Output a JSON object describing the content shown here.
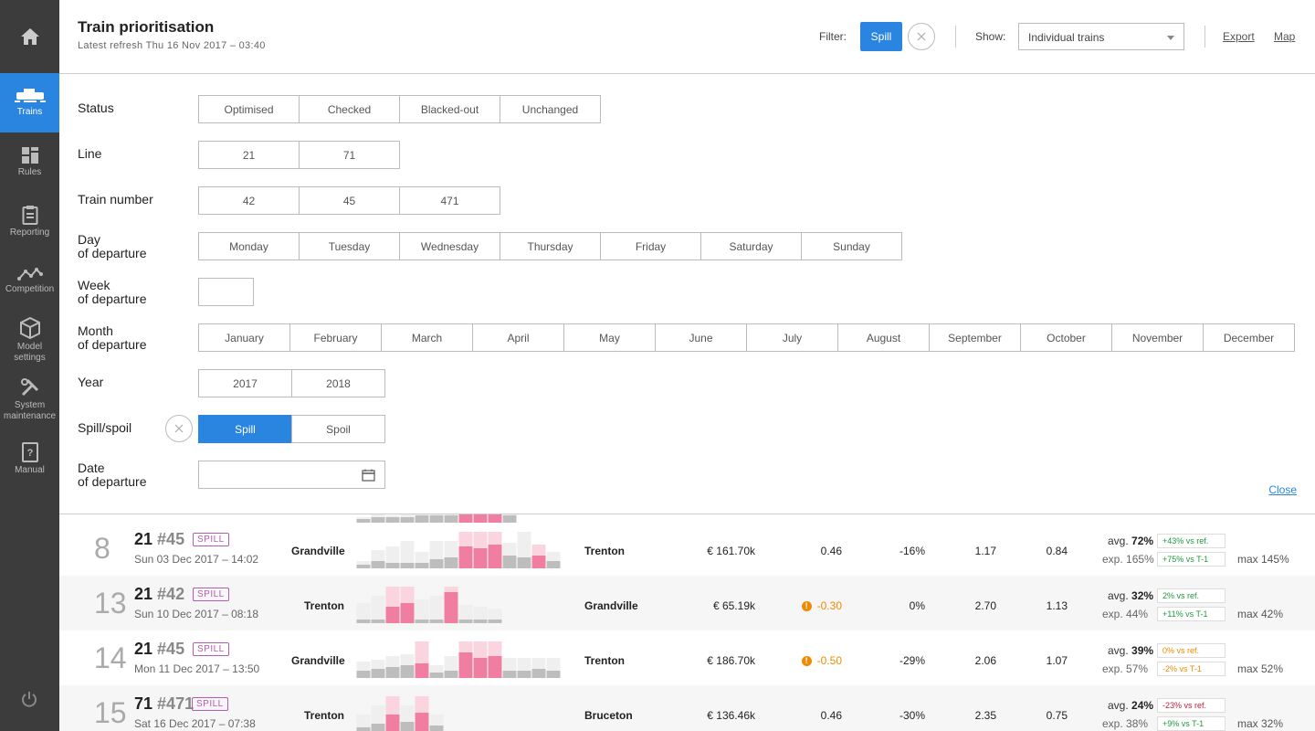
{
  "sidebar": {
    "items": [
      {
        "label": "Trains",
        "icon": "train-icon",
        "active": true
      },
      {
        "label": "Rules",
        "icon": "rules-icon"
      },
      {
        "label": "Reporting",
        "icon": "clipboard-icon"
      },
      {
        "label": "Competition",
        "icon": "line-graph-icon"
      },
      {
        "label": "Model\nsettings",
        "icon": "cube-icon"
      },
      {
        "label": "System\nmaintenance",
        "icon": "tools-icon"
      },
      {
        "label": "Manual",
        "icon": "book-icon"
      }
    ]
  },
  "header": {
    "title": "Train prioritisation",
    "subtitle": "Latest refresh Thu 16 Nov 2017 – 03:40",
    "filter_label": "Filter:",
    "filter_chip": "Spill",
    "show_label": "Show:",
    "show_value": "Individual trains",
    "export_label": "Export",
    "map_label": "Map"
  },
  "filters": {
    "status": {
      "label": "Status",
      "options": [
        "Optimised",
        "Checked",
        "Blacked-out",
        "Unchanged"
      ]
    },
    "line": {
      "label": "Line",
      "options": [
        "21",
        "71"
      ]
    },
    "train_number": {
      "label": "Train number",
      "options": [
        "42",
        "45",
        "471"
      ]
    },
    "day": {
      "label1": "Day",
      "label2": "of departure",
      "options": [
        "Monday",
        "Tuesday",
        "Wednesday",
        "Thursday",
        "Friday",
        "Saturday",
        "Sunday"
      ]
    },
    "week": {
      "label1": "Week",
      "label2": "of departure"
    },
    "month": {
      "label1": "Month",
      "label2": "of departure",
      "options": [
        "January",
        "February",
        "March",
        "April",
        "May",
        "June",
        "July",
        "August",
        "September",
        "October",
        "November",
        "December"
      ]
    },
    "year": {
      "label": "Year",
      "options": [
        "2017",
        "2018"
      ]
    },
    "spill": {
      "label": "Spill/spoil",
      "options": [
        "Spill",
        "Spoil"
      ],
      "selected": "Spill"
    },
    "date": {
      "label1": "Date",
      "label2": "of departure"
    },
    "close_label": "Close"
  },
  "rows": [
    {
      "rank": "8",
      "line": "21",
      "train": "#45",
      "badge": "SPILL",
      "date": "Sun 03 Dec 2017 – 14:02",
      "from": "Grandville",
      "to": "Trenton",
      "revenue": "€ 161.70k",
      "score": "0.46",
      "score_warn": false,
      "pct": "-16%",
      "v1": "1.17",
      "v2": "0.84",
      "avg_label": "avg.",
      "avg": "72%",
      "avg_pill": "+43% vs ref.",
      "avg_pill_color": "green",
      "exp": "exp. 165%",
      "exp_pill": "+75% vs T-1",
      "exp_pill_color": "green",
      "max": "max 145%"
    },
    {
      "rank": "13",
      "line": "21",
      "train": "#42",
      "badge": "SPILL",
      "date": "Sun 10 Dec 2017 – 08:18",
      "from": "Trenton",
      "to": "Grandville",
      "revenue": "€ 65.19k",
      "score": "-0.30",
      "score_warn": true,
      "pct": "0%",
      "v1": "2.70",
      "v2": "1.13",
      "avg_label": "avg.",
      "avg": "32%",
      "avg_pill": "2% vs ref.",
      "avg_pill_color": "green",
      "exp": "exp. 44%",
      "exp_pill": "+11% vs T-1",
      "exp_pill_color": "green",
      "max": "max 42%"
    },
    {
      "rank": "14",
      "line": "21",
      "train": "#45",
      "badge": "SPILL",
      "date": "Mon 11 Dec 2017 – 13:50",
      "from": "Grandville",
      "to": "Trenton",
      "revenue": "€ 186.70k",
      "score": "-0.50",
      "score_warn": true,
      "pct": "-29%",
      "v1": "2.06",
      "v2": "1.07",
      "avg_label": "avg.",
      "avg": "39%",
      "avg_pill": "0% vs ref.",
      "avg_pill_color": "orange",
      "exp": "exp. 57%",
      "exp_pill": "-2% vs T-1",
      "exp_pill_color": "orange",
      "max": "max 52%"
    },
    {
      "rank": "15",
      "line": "71",
      "train": "#471",
      "badge": "SPILL",
      "date": "Sat 16 Dec 2017 – 07:38",
      "from": "Trenton",
      "to": "Bruceton",
      "revenue": "€ 136.46k",
      "score": "0.46",
      "score_warn": false,
      "pct": "-30%",
      "v1": "2.35",
      "v2": "0.75",
      "avg_label": "avg.",
      "avg": "24%",
      "avg_pill": "-23% vs ref.",
      "avg_pill_color": "red",
      "exp": "exp. 38%",
      "exp_pill": "+9% vs T-1",
      "exp_pill_color": "green",
      "max": "max 32%"
    }
  ],
  "colors": {
    "accent": "#2a85e0",
    "sidebar": "#3c3c3c",
    "spill_badge": "#b45bb4",
    "bar_grey": "#bdbdbd",
    "bar_pink": "#f07ea0",
    "bar_light_pink": "#fad4df"
  }
}
